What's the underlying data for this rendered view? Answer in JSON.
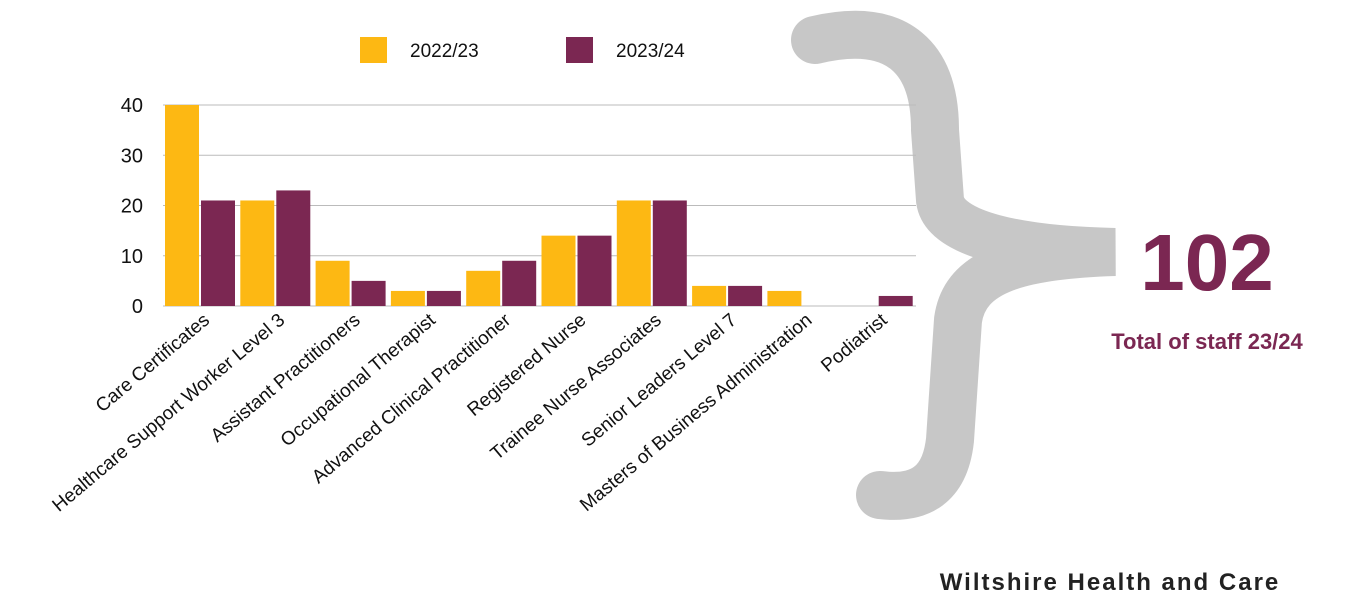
{
  "chart_data": {
    "type": "bar",
    "categories": [
      "Care Certificates",
      "Healthcare Support Worker Level 3",
      "Assistant Practitioners",
      "Occupational Therapist",
      "Advanced Clinical Practitioner",
      "Registered Nurse",
      "Trainee Nurse Associates",
      "Senior Leaders Level 7",
      "Masters of Business Administration",
      "Podiatrist"
    ],
    "series": [
      {
        "name": "2022/23",
        "color": "#fdb813",
        "values": [
          40,
          21,
          9,
          3,
          7,
          14,
          21,
          4,
          3,
          0
        ]
      },
      {
        "name": "2023/24",
        "color": "#7b2752",
        "values": [
          21,
          23,
          5,
          3,
          9,
          14,
          21,
          4,
          0,
          2
        ]
      }
    ],
    "ylim": [
      0,
      40
    ],
    "yticks": [
      0,
      10,
      20,
      30,
      40
    ],
    "grid": true,
    "legend": "top"
  },
  "total": {
    "value": 102,
    "label": "Total of staff 23/24",
    "color": "#7b2752"
  },
  "footer": "Wiltshire Health and Care"
}
